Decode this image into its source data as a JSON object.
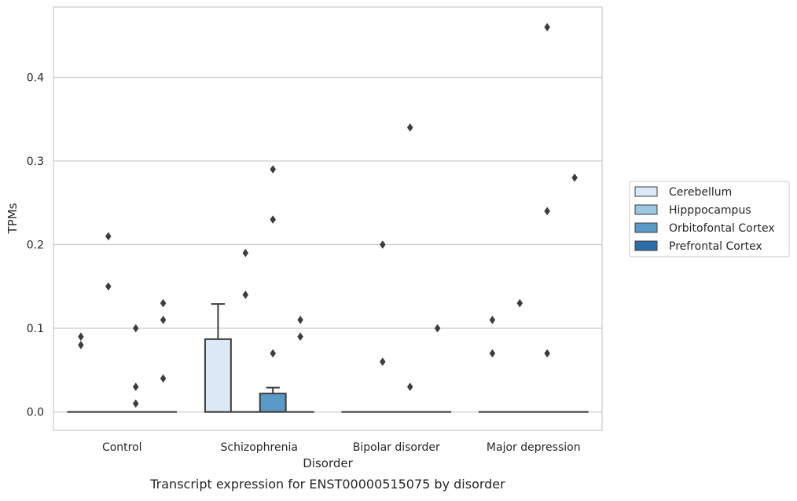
{
  "chart_data": {
    "type": "box",
    "xlabel": "Disorder",
    "ylabel": "TPMs",
    "caption": "Transcript expression for ENST00000515075 by disorder",
    "ylim": [
      -0.022,
      0.484
    ],
    "yticks": [
      "0.0",
      "0.1",
      "0.2",
      "0.3",
      "0.4"
    ],
    "grid": "horizontal",
    "legend_position": "right",
    "categories": [
      "Control",
      "Schizophrenia",
      "Bipolar disorder",
      "Major depression"
    ],
    "series": [
      {
        "name": "Cerebellum",
        "color": "#dbe9f6",
        "boxes": [
          {
            "q1": 0,
            "median": 0,
            "q3": 0,
            "whisker_low": 0,
            "whisker_high": 0,
            "outliers": [
              0.08,
              0.09
            ]
          },
          {
            "q1": 0,
            "median": 0,
            "q3": 0.087,
            "whisker_low": 0,
            "whisker_high": 0.129,
            "outliers": []
          },
          {
            "q1": 0,
            "median": 0,
            "q3": 0,
            "whisker_low": 0,
            "whisker_high": 0,
            "outliers": []
          },
          {
            "q1": 0,
            "median": 0,
            "q3": 0,
            "whisker_low": 0,
            "whisker_high": 0,
            "outliers": [
              0.07,
              0.11
            ]
          }
        ]
      },
      {
        "name": "Hipppocampus",
        "color": "#9ac8e0",
        "boxes": [
          {
            "q1": 0,
            "median": 0,
            "q3": 0,
            "whisker_low": 0,
            "whisker_high": 0,
            "outliers": [
              0.15,
              0.21
            ]
          },
          {
            "q1": 0,
            "median": 0,
            "q3": 0,
            "whisker_low": 0,
            "whisker_high": 0,
            "outliers": [
              0.14,
              0.19
            ]
          },
          {
            "q1": 0,
            "median": 0,
            "q3": 0,
            "whisker_low": 0,
            "whisker_high": 0,
            "outliers": [
              0.06,
              0.2
            ]
          },
          {
            "q1": 0,
            "median": 0,
            "q3": 0,
            "whisker_low": 0,
            "whisker_high": 0,
            "outliers": [
              0.13
            ]
          }
        ]
      },
      {
        "name": "Orbitofontal Cortex",
        "color": "#5a9ac8",
        "boxes": [
          {
            "q1": 0,
            "median": 0,
            "q3": 0,
            "whisker_low": 0,
            "whisker_high": 0,
            "outliers": [
              0.01,
              0.03,
              0.1
            ]
          },
          {
            "q1": 0,
            "median": 0,
            "q3": 0.022,
            "whisker_low": 0,
            "whisker_high": 0.029,
            "outliers": [
              0.07,
              0.23,
              0.29
            ]
          },
          {
            "q1": 0,
            "median": 0,
            "q3": 0,
            "whisker_low": 0,
            "whisker_high": 0,
            "outliers": [
              0.03,
              0.34
            ]
          },
          {
            "q1": 0,
            "median": 0,
            "q3": 0,
            "whisker_low": 0,
            "whisker_high": 0,
            "outliers": [
              0.07,
              0.24,
              0.46
            ]
          }
        ]
      },
      {
        "name": "Prefrontal Cortex",
        "color": "#2c6da7",
        "boxes": [
          {
            "q1": 0,
            "median": 0,
            "q3": 0,
            "whisker_low": 0,
            "whisker_high": 0,
            "outliers": [
              0.04,
              0.11,
              0.13
            ]
          },
          {
            "q1": 0,
            "median": 0,
            "q3": 0,
            "whisker_low": 0,
            "whisker_high": 0,
            "outliers": [
              0.09,
              0.11
            ]
          },
          {
            "q1": 0,
            "median": 0,
            "q3": 0,
            "whisker_low": 0,
            "whisker_high": 0,
            "outliers": [
              0.1
            ]
          },
          {
            "q1": 0,
            "median": 0,
            "q3": 0,
            "whisker_low": 0,
            "whisker_high": 0,
            "outliers": [
              0.28
            ]
          }
        ]
      }
    ]
  },
  "colors": {
    "axis_frame": "#cccccc",
    "gridline": "#cccccc",
    "box_edge": "#3d3d3d",
    "legend_border": "#cccccc"
  }
}
